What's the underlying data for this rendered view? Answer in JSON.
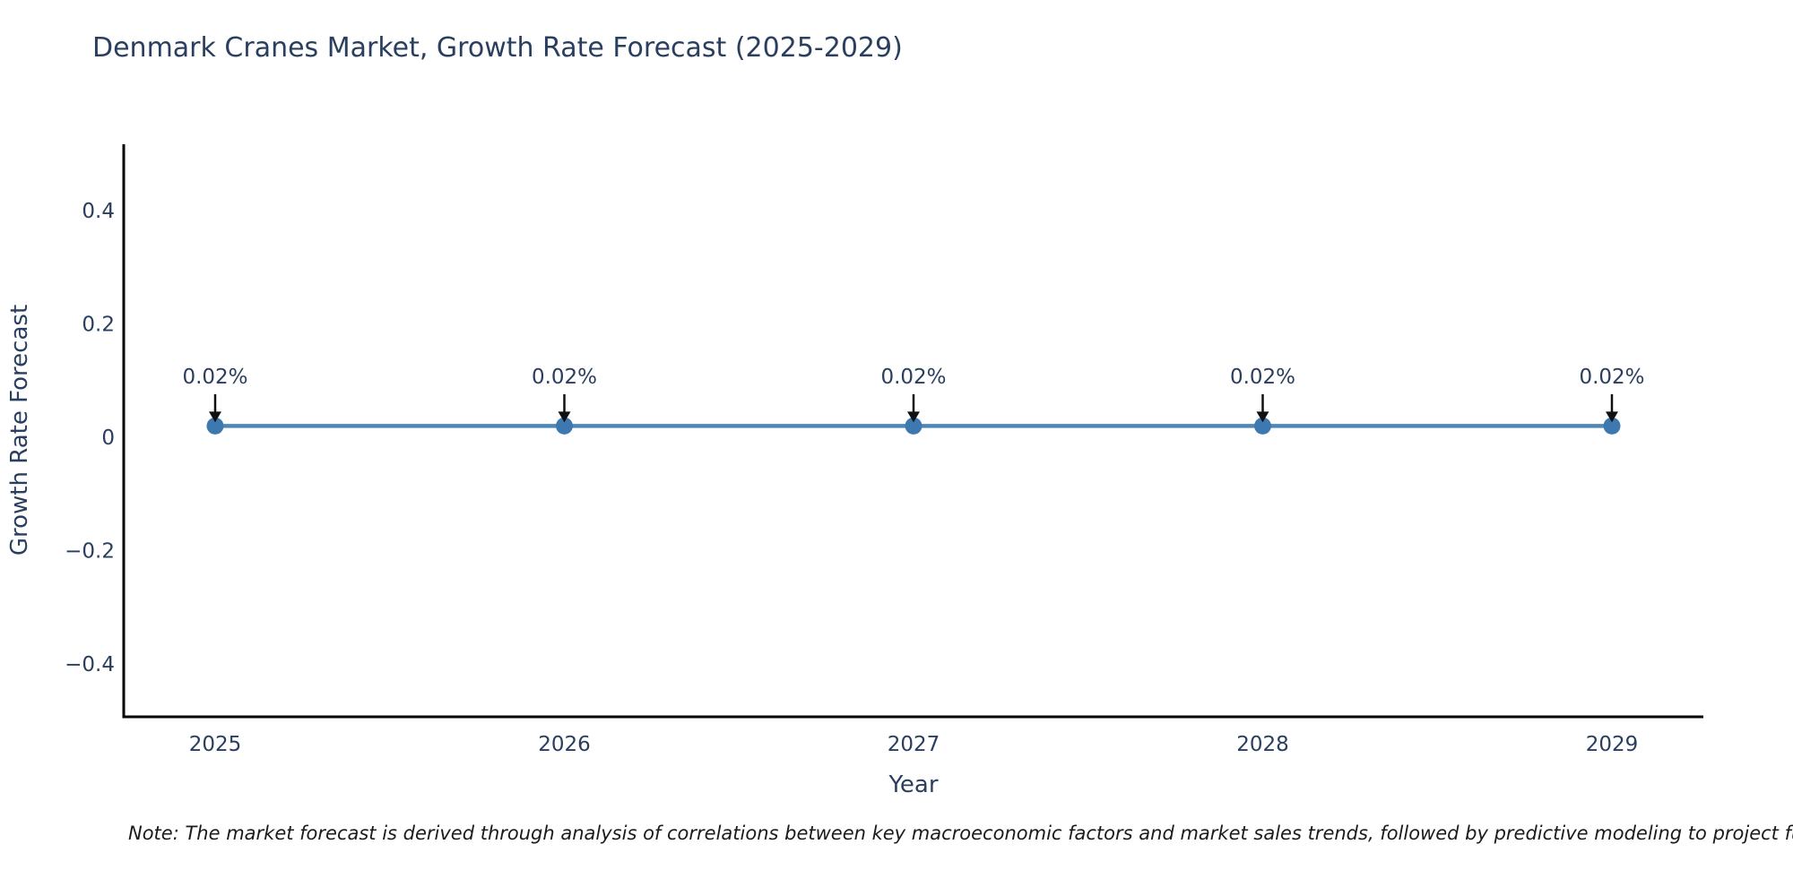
{
  "chart_data": {
    "type": "line",
    "title": "Denmark Cranes Market, Growth Rate Forecast (2025-2029)",
    "xlabel": "Year",
    "ylabel": "Growth Rate Forecast",
    "categories": [
      "2025",
      "2026",
      "2027",
      "2028",
      "2029"
    ],
    "values": [
      0.02,
      0.02,
      0.02,
      0.02,
      0.02
    ],
    "value_unit": "%",
    "annotations": [
      "0.02%",
      "0.02%",
      "0.02%",
      "0.02%",
      "0.02%"
    ],
    "y_ticks": [
      {
        "label": "0.4",
        "value": 0.4
      },
      {
        "label": "0.2",
        "value": 0.2
      },
      {
        "label": "0",
        "value": 0
      },
      {
        "label": "−0.2",
        "value": -0.2
      },
      {
        "label": "−0.4",
        "value": -0.4
      }
    ],
    "ylim": [
      -0.5,
      0.52
    ],
    "grid": false,
    "legend_position": "none",
    "colors": {
      "line": "#4f86b8",
      "marker": "#3d78b0",
      "axis": "#000000",
      "text": "#2a3f5f",
      "arrow": "#111111"
    }
  },
  "note": "Note: The market forecast is derived through analysis of correlations between key macroeconomic factors and market sales trends, followed by predictive modeling to project future sa"
}
